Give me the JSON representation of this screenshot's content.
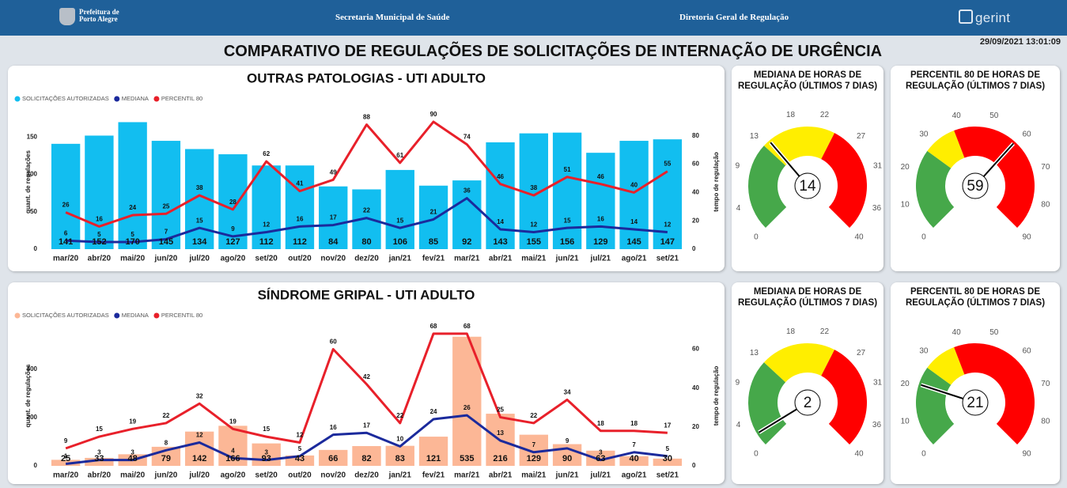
{
  "header": {
    "logo": [
      "Prefeitura de",
      "Porto Alegre"
    ],
    "center": "Secretaria Municipal de Saúde",
    "right": "Diretoria Geral de Regulação",
    "brand": "gerint",
    "timestamp": "29/09/2021 13:01:09",
    "title": "COMPARATIVO DE REGULAÇÕES DE SOLICITAÇÕES DE INTERNAÇÃO DE URGÊNCIA"
  },
  "chart_data": [
    {
      "type": "combo",
      "title": "OUTRAS PATOLOGIAS - UTI ADULTO",
      "y_label": "quant. de regulações",
      "y2_label": "tempo de regulação",
      "categories": [
        "mar/20",
        "abr/20",
        "mai/20",
        "jun/20",
        "jul/20",
        "ago/20",
        "set/20",
        "out/20",
        "nov/20",
        "dez/20",
        "jan/21",
        "fev/21",
        "mar/21",
        "abr/21",
        "mai/21",
        "jun/21",
        "jul/21",
        "ago/21",
        "set/21"
      ],
      "ylim": [
        0,
        180
      ],
      "yticks": [
        0,
        50,
        100,
        150
      ],
      "y2lim": [
        0,
        95
      ],
      "y2ticks": [
        0,
        20,
        40,
        60,
        80
      ],
      "series": [
        {
          "name": "SOLICITAÇÕES AUTORIZADAS",
          "type": "bar",
          "color": "#12bef0",
          "values": [
            141,
            152,
            170,
            145,
            134,
            127,
            112,
            112,
            84,
            80,
            106,
            85,
            92,
            143,
            155,
            156,
            129,
            145,
            147
          ]
        },
        {
          "name": "MEDIANA",
          "type": "line",
          "axis": "y2",
          "color": "#1b2a9c",
          "values": [
            6,
            5,
            5,
            7,
            15,
            9,
            12,
            16,
            17,
            22,
            15,
            21,
            36,
            14,
            12,
            15,
            16,
            14,
            12
          ]
        },
        {
          "name": "PERCENTIL 80",
          "type": "line",
          "axis": "y2",
          "color": "#e8202a",
          "values": [
            26,
            16,
            24,
            25,
            38,
            28,
            62,
            41,
            49,
            88,
            61,
            90,
            74,
            46,
            38,
            51,
            46,
            40,
            55
          ]
        }
      ]
    },
    {
      "type": "gauge",
      "title": "MEDIANA DE HORAS DE REGULAÇÃO (ÚLTIMOS 7 DIAS)",
      "value": 14,
      "lim": [
        0,
        40
      ],
      "ticks": [
        0,
        4,
        9,
        13,
        18,
        22,
        27,
        31,
        36,
        40
      ],
      "bands": [
        {
          "from": 0,
          "to": 13,
          "color": "#46a84a"
        },
        {
          "from": 13,
          "to": 24,
          "color": "#ffee00"
        },
        {
          "from": 24,
          "to": 40,
          "color": "#ff0000"
        }
      ]
    },
    {
      "type": "gauge",
      "title": "PERCENTIL 80 DE HORAS DE REGULAÇÃO (ÚLTIMOS 7 DIAS)",
      "value": 59,
      "lim": [
        0,
        90
      ],
      "ticks": [
        0,
        10,
        20,
        30,
        40,
        50,
        60,
        70,
        80,
        90
      ],
      "bands": [
        {
          "from": 0,
          "to": 27,
          "color": "#46a84a"
        },
        {
          "from": 27,
          "to": 38,
          "color": "#ffee00"
        },
        {
          "from": 38,
          "to": 90,
          "color": "#ff0000"
        }
      ]
    },
    {
      "type": "combo",
      "title": "SÍNDROME GRIPAL - UTI ADULTO",
      "y_label": "quant. de regulações",
      "y2_label": "tempo de regulação",
      "categories": [
        "mar/20",
        "abr/20",
        "mai/20",
        "jun/20",
        "jul/20",
        "ago/20",
        "set/20",
        "out/20",
        "nov/20",
        "dez/20",
        "jan/21",
        "fev/21",
        "mar/21",
        "abr/21",
        "mai/21",
        "jun/21",
        "jul/21",
        "ago/21",
        "set/21"
      ],
      "ylim": [
        0,
        580
      ],
      "yticks": [
        0,
        200,
        400
      ],
      "y2lim": [
        0,
        72
      ],
      "y2ticks": [
        0,
        20,
        40,
        60
      ],
      "series": [
        {
          "name": "SOLICITAÇÕES AUTORIZADAS",
          "type": "bar",
          "color": "#fcb796",
          "values": [
            25,
            33,
            48,
            79,
            142,
            166,
            93,
            43,
            66,
            82,
            83,
            121,
            535,
            216,
            129,
            90,
            63,
            40,
            30
          ]
        },
        {
          "name": "MEDIANA",
          "type": "line",
          "axis": "y2",
          "color": "#1b2a9c",
          "values": [
            1,
            3,
            3,
            8,
            12,
            4,
            3,
            5,
            16,
            17,
            10,
            24,
            26,
            13,
            7,
            9,
            3,
            7,
            5
          ]
        },
        {
          "name": "PERCENTIL 80",
          "type": "line",
          "axis": "y2",
          "color": "#e8202a",
          "values": [
            9,
            15,
            19,
            22,
            32,
            19,
            15,
            12,
            60,
            42,
            22,
            68,
            68,
            25,
            22,
            34,
            18,
            18,
            17
          ]
        }
      ]
    },
    {
      "type": "gauge",
      "title": "MEDIANA DE HORAS DE REGULAÇÃO (ÚLTIMOS 7 DIAS)",
      "value": 2,
      "lim": [
        0,
        40
      ],
      "ticks": [
        0,
        4,
        9,
        13,
        18,
        22,
        27,
        31,
        36,
        40
      ],
      "bands": [
        {
          "from": 0,
          "to": 13,
          "color": "#46a84a"
        },
        {
          "from": 13,
          "to": 24,
          "color": "#ffee00"
        },
        {
          "from": 24,
          "to": 40,
          "color": "#ff0000"
        }
      ]
    },
    {
      "type": "gauge",
      "title": "PERCENTIL 80 DE HORAS DE REGULAÇÃO (ÚLTIMOS 7 DIAS)",
      "value": 21,
      "lim": [
        0,
        90
      ],
      "ticks": [
        0,
        10,
        20,
        30,
        40,
        50,
        60,
        70,
        80,
        90
      ],
      "bands": [
        {
          "from": 0,
          "to": 27,
          "color": "#46a84a"
        },
        {
          "from": 27,
          "to": 38,
          "color": "#ffee00"
        },
        {
          "from": 38,
          "to": 90,
          "color": "#ff0000"
        }
      ]
    }
  ]
}
